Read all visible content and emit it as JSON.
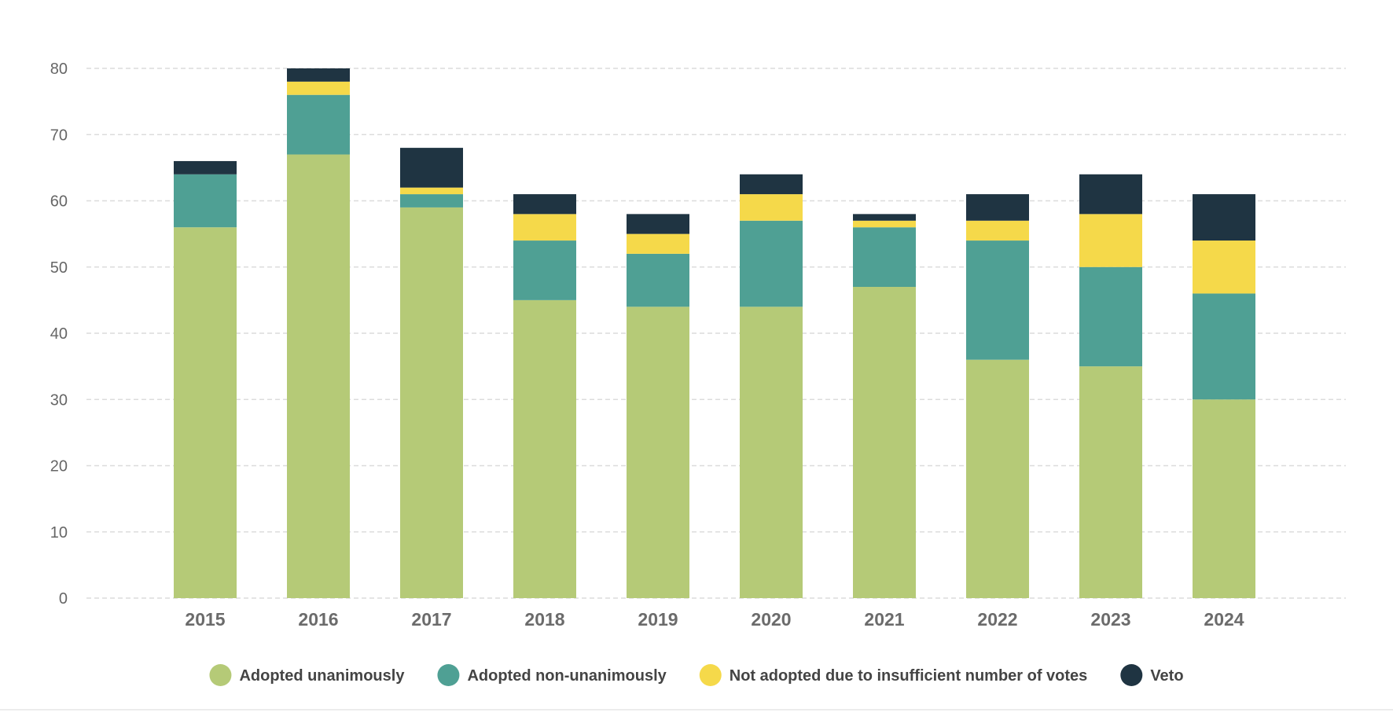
{
  "chart_data": {
    "type": "bar",
    "stacked": true,
    "title": "",
    "xlabel": "",
    "ylabel": "",
    "ylim": [
      0,
      80
    ],
    "yticks": [
      0,
      10,
      20,
      30,
      40,
      50,
      60,
      70,
      80
    ],
    "grid": true,
    "legend_position": "bottom",
    "categories": [
      "2015",
      "2016",
      "2017",
      "2018",
      "2019",
      "2020",
      "2021",
      "2022",
      "2023",
      "2024"
    ],
    "series": [
      {
        "name": "Adopted unanimously",
        "color": "#b5ca77",
        "values": [
          56,
          67,
          59,
          45,
          44,
          44,
          47,
          36,
          35,
          30
        ]
      },
      {
        "name": "Adopted non-unanimously",
        "color": "#4fa094",
        "values": [
          8,
          9,
          2,
          9,
          8,
          13,
          9,
          18,
          15,
          16
        ]
      },
      {
        "name": "Not adopted due to insufficient number of votes",
        "color": "#f5d94a",
        "values": [
          0,
          2,
          1,
          4,
          3,
          4,
          1,
          3,
          8,
          8
        ]
      },
      {
        "name": "Veto",
        "color": "#1f3442",
        "values": [
          2,
          2,
          6,
          3,
          3,
          3,
          1,
          4,
          6,
          7
        ]
      }
    ]
  }
}
